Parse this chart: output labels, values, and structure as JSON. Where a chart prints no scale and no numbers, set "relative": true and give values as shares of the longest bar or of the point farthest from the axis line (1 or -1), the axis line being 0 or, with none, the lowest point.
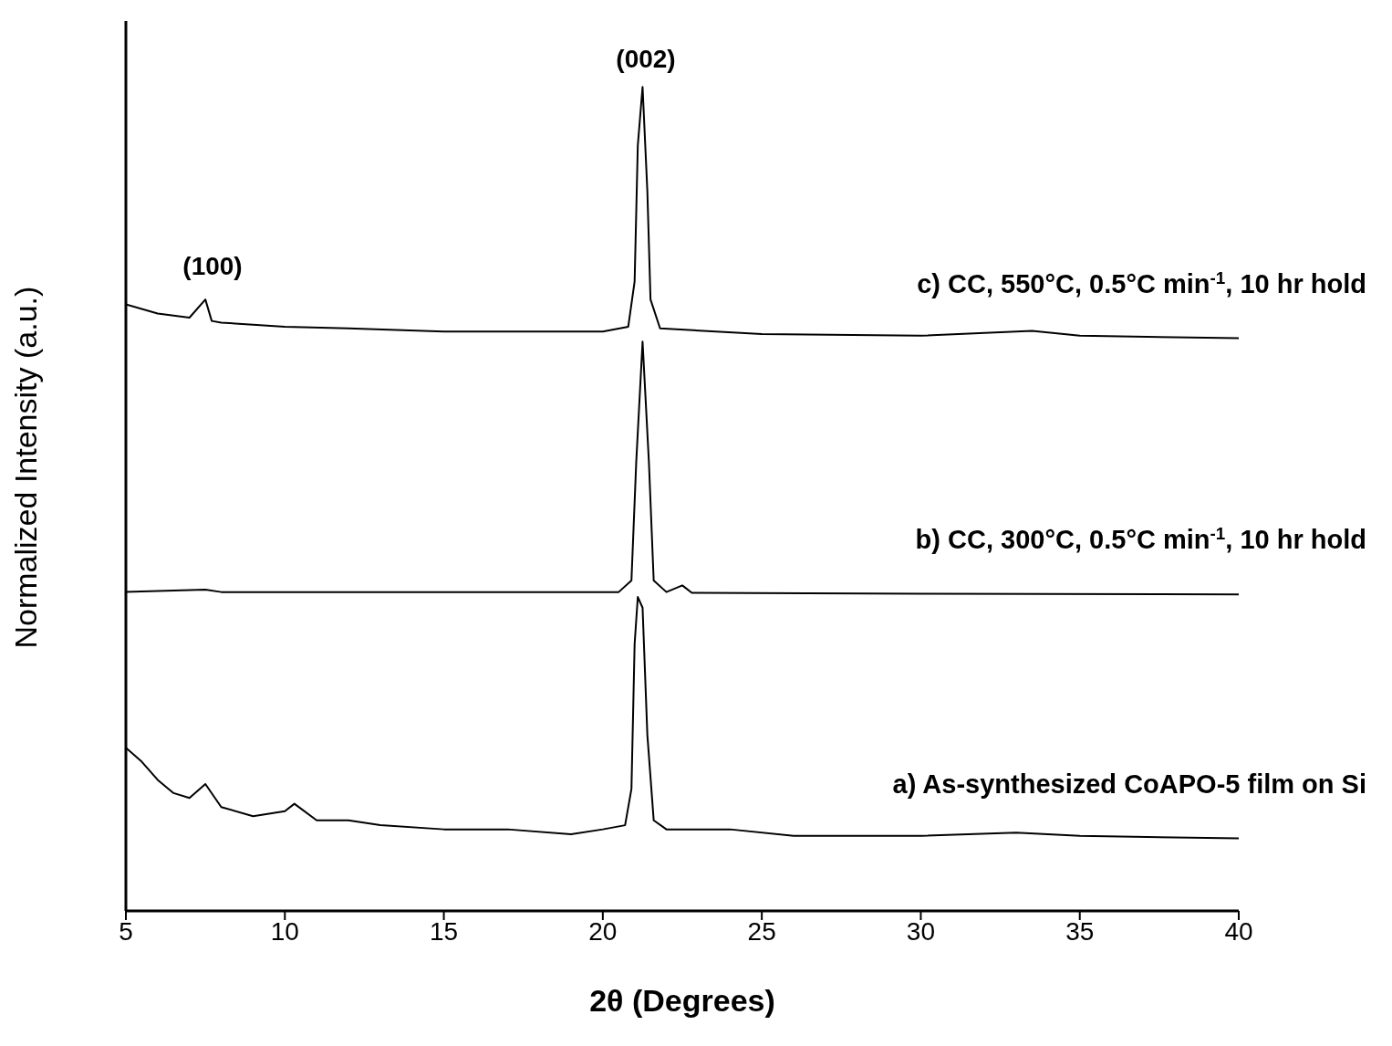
{
  "chart_data": {
    "type": "line",
    "relative": true,
    "xlabel": "2θ (Degrees)",
    "ylabel": "Normalized Intensity (a.u.)",
    "xlim": [
      5,
      40
    ],
    "xticks": [
      5,
      10,
      15,
      20,
      25,
      30,
      35,
      40
    ],
    "marker": "none",
    "line_style": "solid",
    "annotations": [
      "(100)",
      "(002)"
    ],
    "series": [
      {
        "name": "a) As-synthesized CoAPO-5 film on Si",
        "color": "#000000",
        "x": [
          5,
          5.5,
          6,
          6.5,
          7,
          7.5,
          8,
          9,
          10,
          10.3,
          11,
          12,
          13,
          15,
          17,
          19,
          20,
          20.7,
          20.9,
          21.0,
          21.1,
          21.25,
          21.4,
          21.6,
          22,
          24,
          26,
          30,
          33,
          35,
          40
        ],
        "values": [
          0.198,
          0.181,
          0.159,
          0.143,
          0.137,
          0.154,
          0.126,
          0.115,
          0.121,
          0.13,
          0.11,
          0.11,
          0.104,
          0.099,
          0.099,
          0.093,
          0.099,
          0.104,
          0.148,
          0.324,
          0.381,
          0.368,
          0.214,
          0.11,
          0.099,
          0.099,
          0.091,
          0.091,
          0.095,
          0.091,
          0.088
        ]
      },
      {
        "name": "b) CC, 300°C, 0.5°C min$^{-1}$, 10 hr hold",
        "color": "#000000",
        "x": [
          5,
          7.5,
          8,
          20.5,
          20.9,
          21.05,
          21.25,
          21.45,
          21.6,
          22,
          22.5,
          22.8,
          30,
          40
        ],
        "values": [
          0.387,
          0.39,
          0.387,
          0.387,
          0.401,
          0.544,
          0.691,
          0.544,
          0.401,
          0.387,
          0.395,
          0.386,
          0.385,
          0.384
        ]
      },
      {
        "name": "c) CC, 550°C, 0.5°C min$^{-1}$, 10 hr hold",
        "color": "#000000",
        "x": [
          5,
          6,
          7,
          7.5,
          7.7,
          8,
          10,
          12,
          15,
          20,
          20.8,
          21.0,
          21.1,
          21.25,
          21.4,
          21.5,
          21.8,
          25,
          30,
          33.5,
          35,
          40
        ],
        "values": [
          0.736,
          0.725,
          0.72,
          0.742,
          0.716,
          0.714,
          0.709,
          0.707,
          0.703,
          0.703,
          0.709,
          0.764,
          0.929,
          1.0,
          0.874,
          0.742,
          0.707,
          0.7,
          0.698,
          0.704,
          0.698,
          0.695
        ]
      }
    ]
  }
}
